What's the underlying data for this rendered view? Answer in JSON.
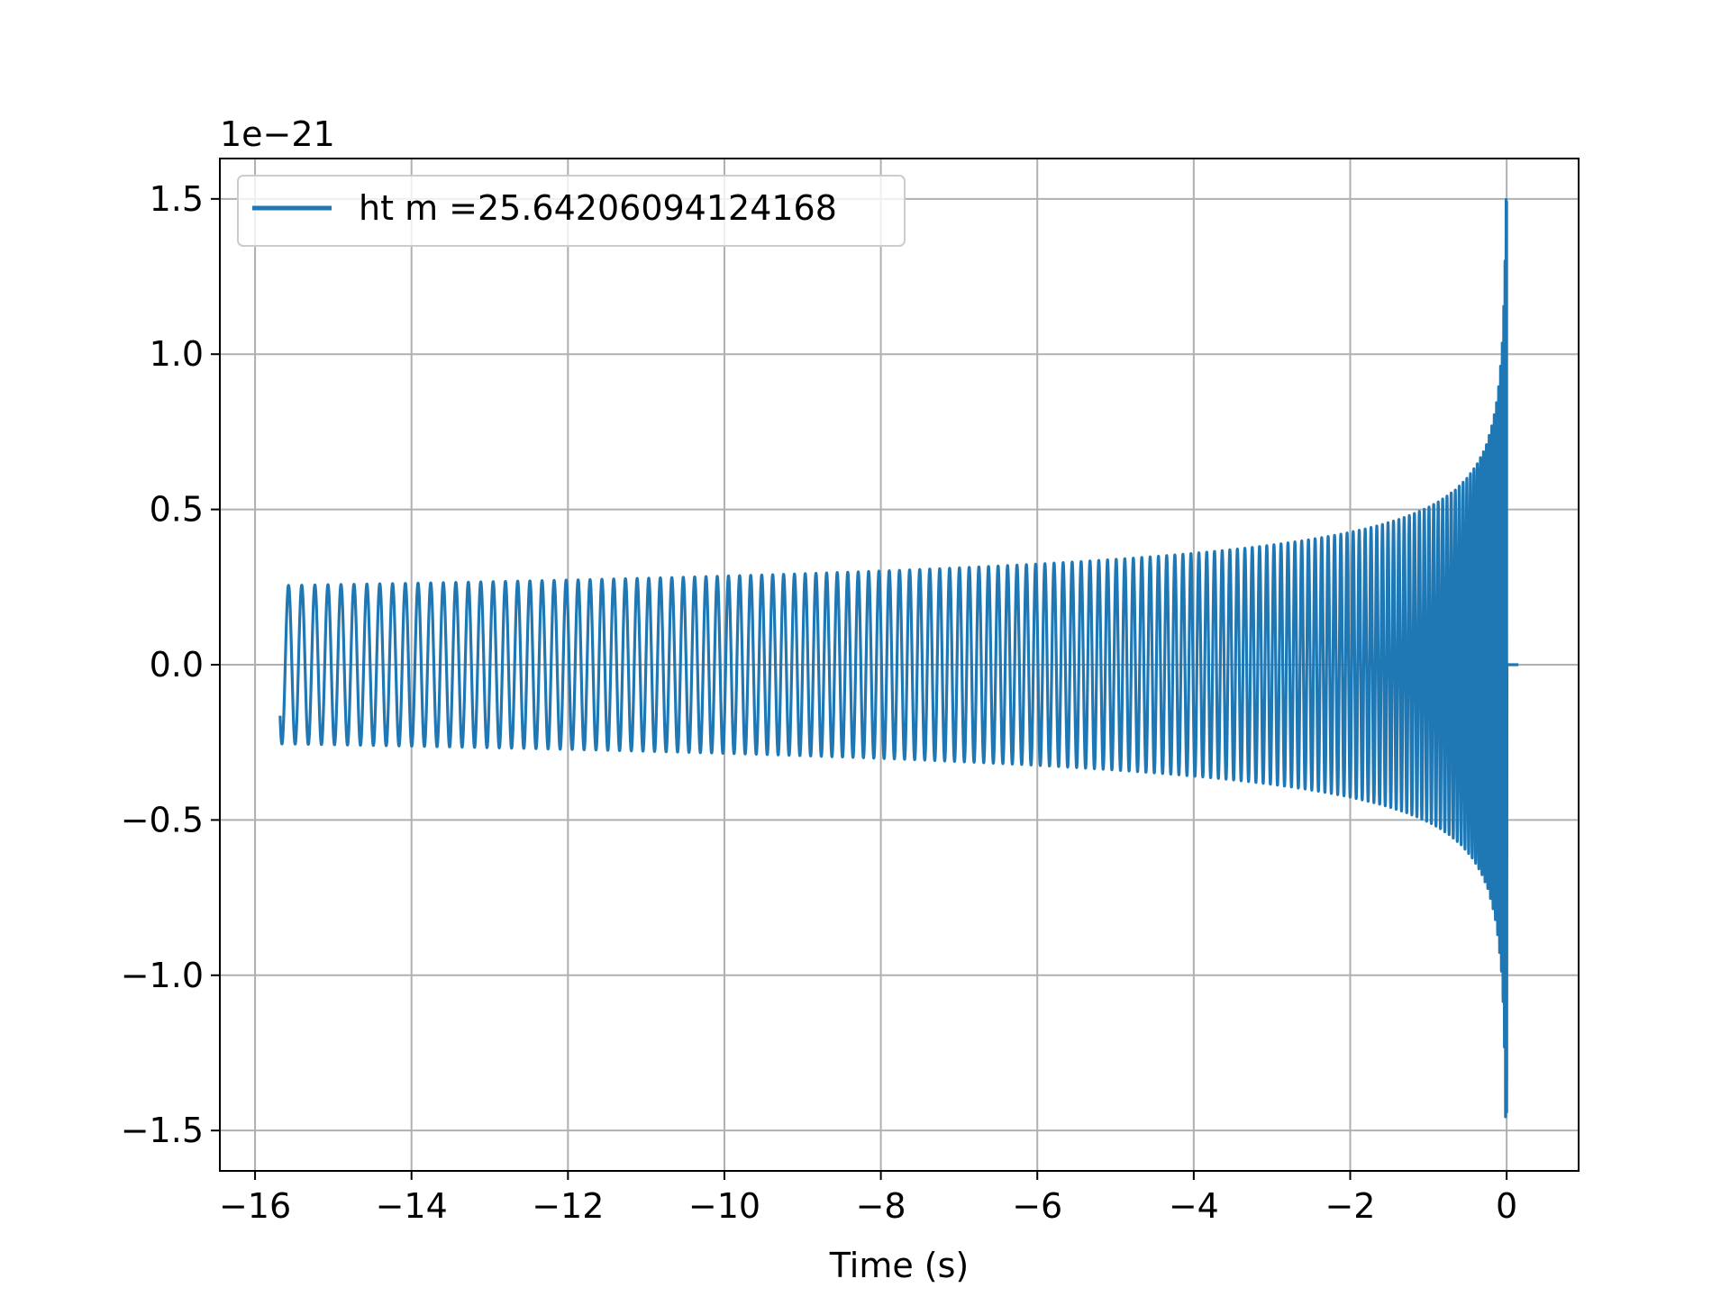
{
  "chart_data": {
    "type": "line",
    "title": "",
    "xlabel": "Time (s)",
    "ylabel": "",
    "y_offset_label": "1e−21",
    "xlim": [
      -16.45,
      0.92
    ],
    "ylim": [
      -1.63,
      1.63
    ],
    "x_ticks": [
      -16,
      -14,
      -12,
      -10,
      -8,
      -6,
      -4,
      -2,
      0
    ],
    "x_tick_labels": [
      "−16",
      "−14",
      "−12",
      "−10",
      "−8",
      "−6",
      "−4",
      "−2",
      "0"
    ],
    "y_ticks": [
      -1.5,
      -1.0,
      -0.5,
      0.0,
      0.5,
      1.0,
      1.5
    ],
    "y_tick_labels": [
      "−1.5",
      "−1.0",
      "−0.5",
      "0.0",
      "0.5",
      "1.0",
      "1.5"
    ],
    "grid": true,
    "legend_position": "top-left",
    "series": [
      {
        "name": "ht m =25.64206094124168",
        "color": "#1f77b4",
        "x_start": -15.68,
        "x_merger": 0.0,
        "x_end": 0.15,
        "initial_amplitude": 0.255,
        "peak_positive": 1.49,
        "peak_negative": -1.44,
        "ringdown_value": 0.0
      }
    ]
  }
}
